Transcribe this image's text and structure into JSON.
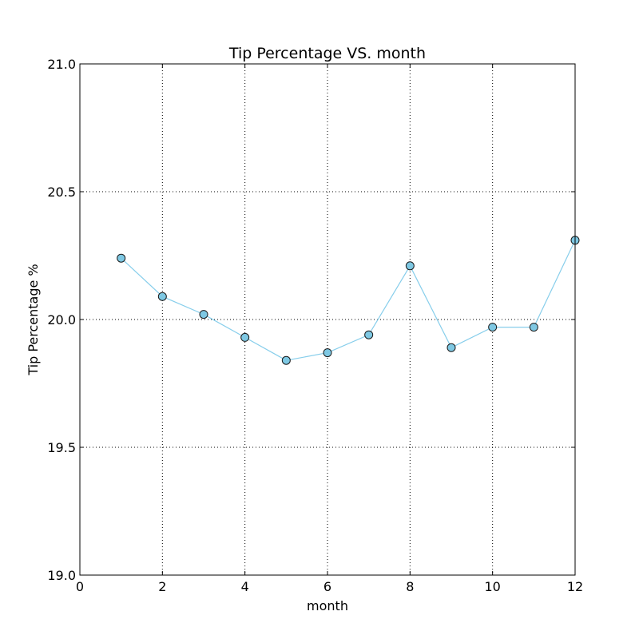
{
  "chart_data": {
    "type": "line",
    "title": "Tip Percentage VS. month",
    "xlabel": "month",
    "ylabel": "Tip Percentage %",
    "xlim": [
      0,
      12
    ],
    "ylim": [
      19.0,
      21.0
    ],
    "grid": true,
    "x_ticks": [
      0,
      2,
      4,
      6,
      8,
      10,
      12
    ],
    "y_ticks": [
      19.0,
      19.5,
      20.0,
      20.5,
      21.0
    ],
    "x_tick_labels": [
      "0",
      "2",
      "4",
      "6",
      "8",
      "10",
      "12"
    ],
    "y_tick_labels": [
      "19.0",
      "19.5",
      "20.0",
      "20.5",
      "21.0"
    ],
    "series": [
      {
        "name": "Tip Percentage",
        "x": [
          1,
          2,
          3,
          4,
          5,
          6,
          7,
          8,
          9,
          10,
          11,
          12
        ],
        "values": [
          20.24,
          20.09,
          20.02,
          19.93,
          19.84,
          19.87,
          19.94,
          20.21,
          19.89,
          19.97,
          19.97,
          20.31
        ],
        "line_color": "#87ceeb",
        "marker_color": "#7ec8e3",
        "marker_edge_color": "#1a1a1a"
      }
    ]
  },
  "colors": {
    "background": "#ffffff",
    "axes": "#000000",
    "grid": "#000000"
  }
}
